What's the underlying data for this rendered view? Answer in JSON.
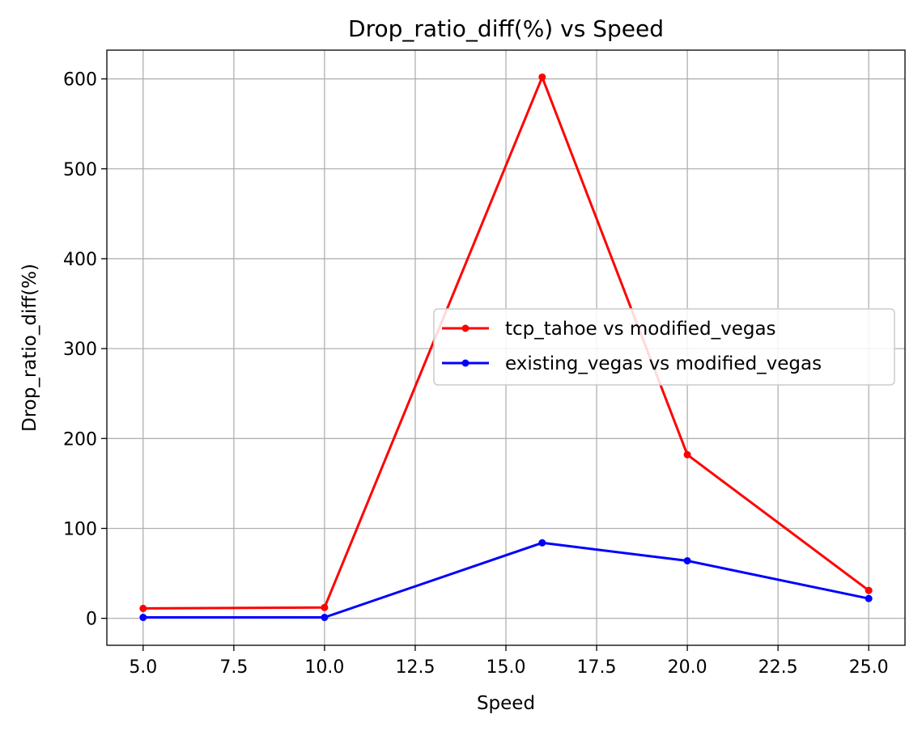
{
  "chart_data": {
    "type": "line",
    "title": "Drop_ratio_diff(%) vs Speed",
    "xlabel": "Speed",
    "ylabel": "Drop_ratio_diff(%)",
    "xlim": [
      4.0,
      26.0
    ],
    "ylim": [
      -30,
      632
    ],
    "xticks": [
      5.0,
      7.5,
      10.0,
      12.5,
      15.0,
      17.5,
      20.0,
      22.5,
      25.0
    ],
    "xtick_labels": [
      "5.0",
      "7.5",
      "10.0",
      "12.5",
      "15.0",
      "17.5",
      "20.0",
      "22.5",
      "25.0"
    ],
    "yticks": [
      0,
      100,
      200,
      300,
      400,
      500,
      600
    ],
    "ytick_labels": [
      "0",
      "100",
      "200",
      "300",
      "400",
      "500",
      "600"
    ],
    "grid": true,
    "legend_position": "center-right",
    "x": [
      5,
      10,
      16,
      20,
      25
    ],
    "series": [
      {
        "name": "tcp_tahoe vs modified_vegas",
        "color": "#ff0000",
        "marker": "circle",
        "values": [
          11,
          12,
          602,
          182,
          31
        ]
      },
      {
        "name": "existing_vegas vs modified_vegas",
        "color": "#0000ff",
        "marker": "circle",
        "values": [
          1,
          1,
          84,
          64,
          22
        ]
      }
    ]
  }
}
